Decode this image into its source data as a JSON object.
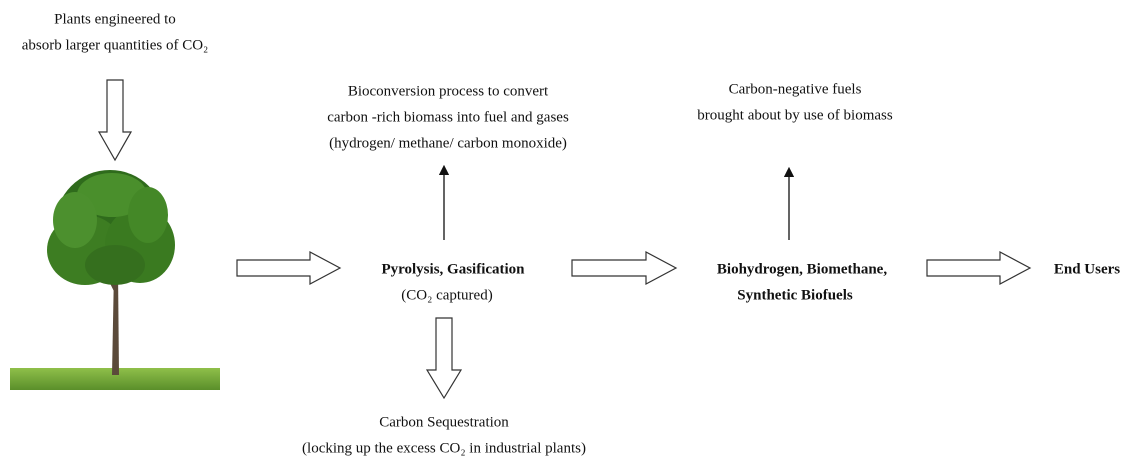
{
  "source": {
    "lines": [
      "Plants engineered to",
      "absorb larger quantities of CO₂"
    ]
  },
  "nodes": [
    {
      "label": [
        "Pyrolysis, Gasification",
        "(CO₂ captured)"
      ]
    },
    {
      "label": [
        "Biohydrogen, Biomethane,",
        "Synthetic Biofuels"
      ]
    },
    {
      "label": [
        "End Users"
      ]
    }
  ],
  "notes": [
    {
      "lines": [
        "Bioconversion process to convert",
        "carbon -rich biomass into fuel and gases",
        "(hydrogen/ methane/ carbon monoxide)"
      ]
    },
    {
      "lines": [
        "Carbon Sequestration",
        "(locking up the excess CO₂ in industrial plants)"
      ]
    },
    {
      "lines": [
        "Carbon-negative fuels",
        "brought about by use of biomass"
      ]
    }
  ]
}
